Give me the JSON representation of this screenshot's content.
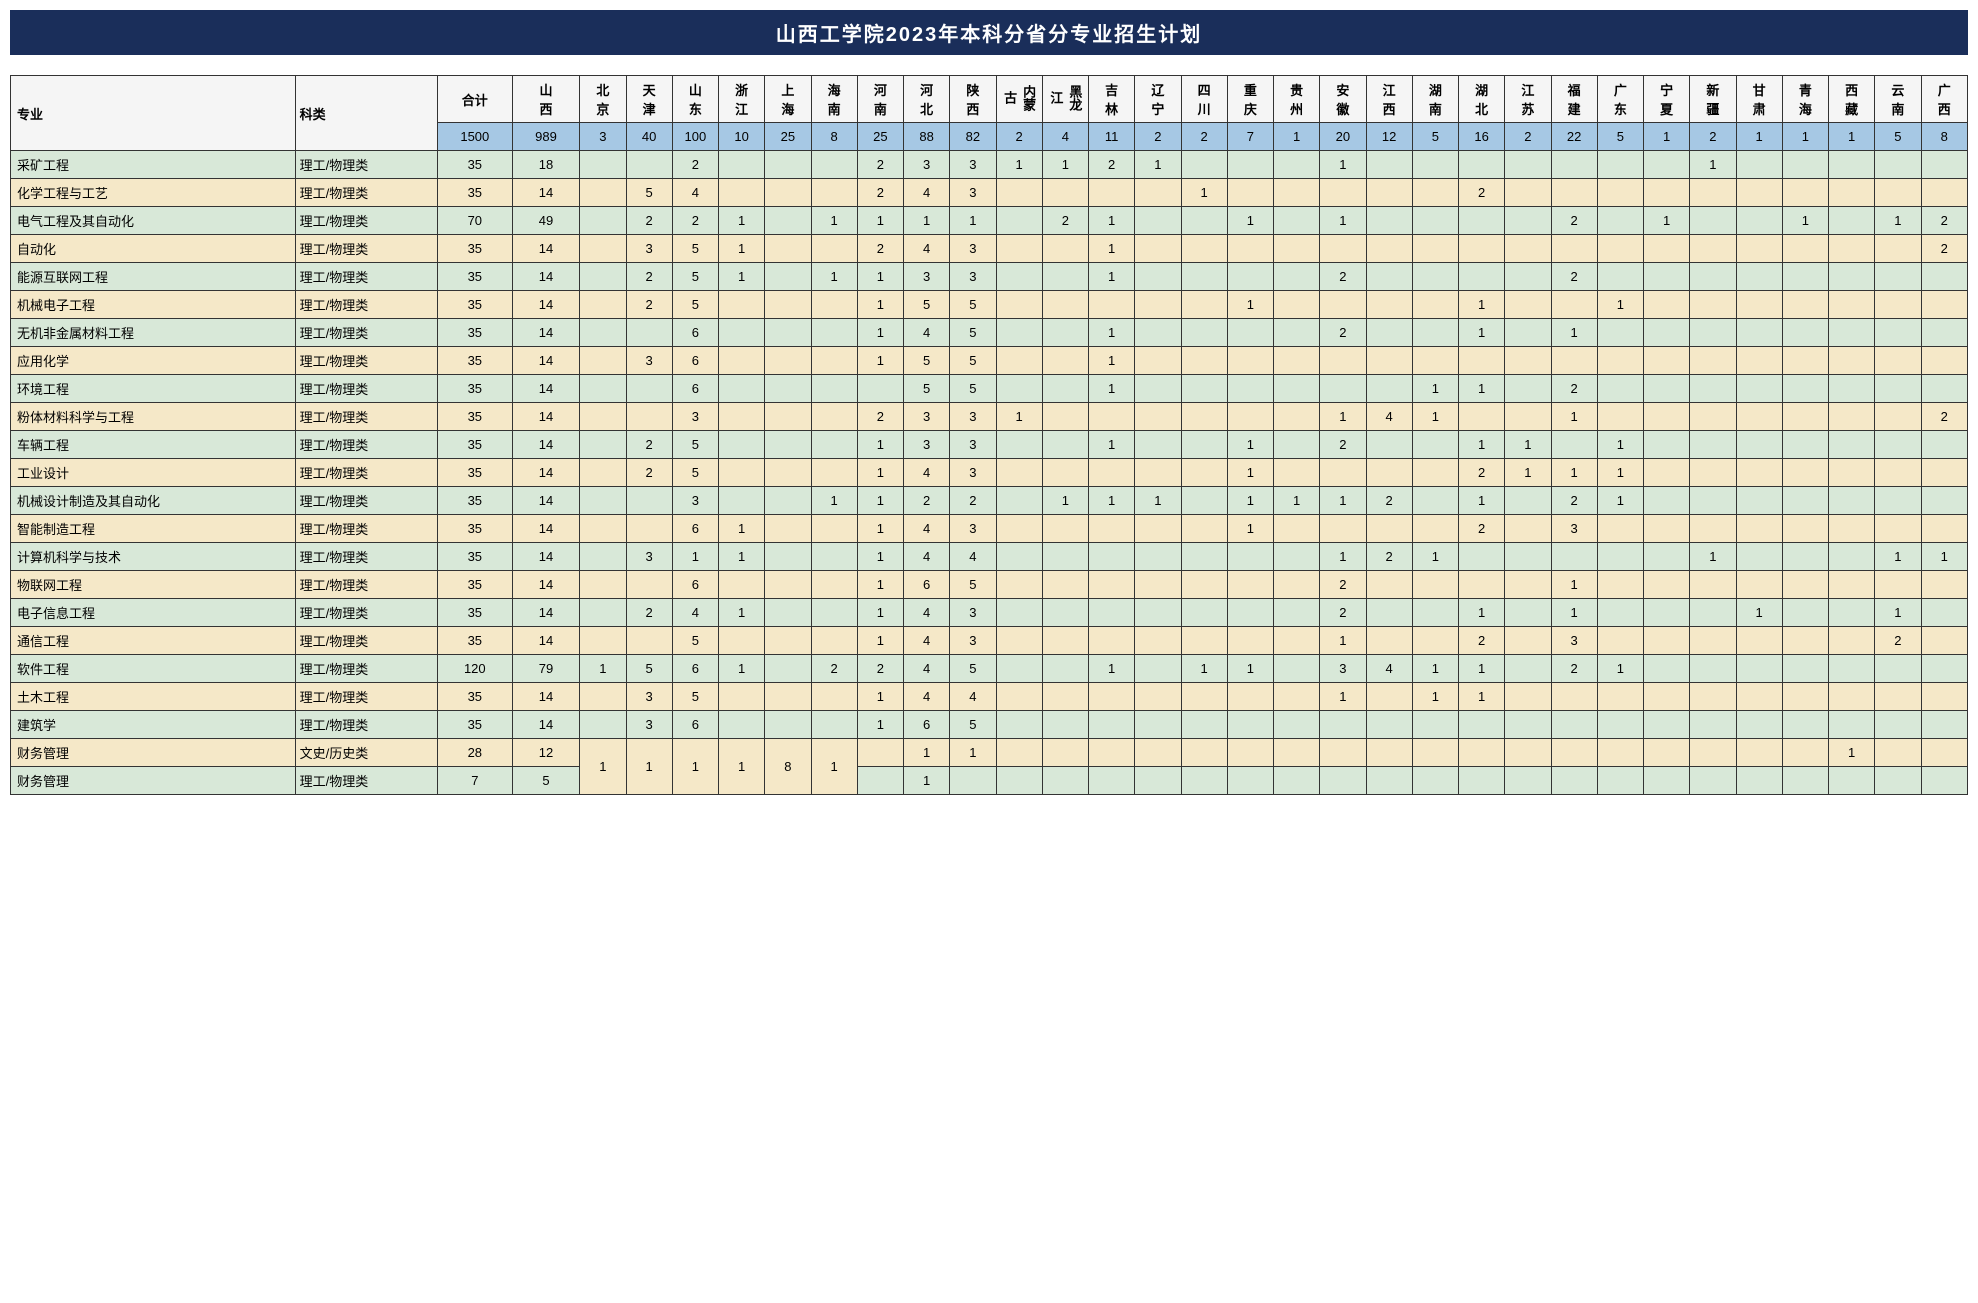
{
  "title": "山西工学院2023年本科分省分专业招生计划",
  "headers": {
    "major": "专业",
    "type": "科类",
    "total": "合计",
    "provinces": [
      "山西",
      "北京",
      "天津",
      "山东",
      "浙江",
      "上海",
      "海南",
      "河南",
      "河北",
      "陕西",
      "内蒙古",
      "黑龙江",
      "吉林",
      "辽宁",
      "四川",
      "重庆",
      "贵州",
      "安徽",
      "江西",
      "湖南",
      "湖北",
      "江苏",
      "福建",
      "广东",
      "宁夏",
      "新疆",
      "甘肃",
      "青海",
      "西藏",
      "云南",
      "广西"
    ]
  },
  "totals": [
    "1500",
    "989",
    "3",
    "40",
    "100",
    "10",
    "25",
    "8",
    "25",
    "88",
    "82",
    "2",
    "4",
    "11",
    "2",
    "2",
    "7",
    "1",
    "20",
    "12",
    "5",
    "16",
    "2",
    "22",
    "5",
    "1",
    "2",
    "1",
    "1",
    "1",
    "5",
    "8"
  ],
  "rows": [
    {
      "major": "采矿工程",
      "type": "理工/物理类",
      "total": "35",
      "cells": [
        "18",
        "",
        "",
        "2",
        "",
        "",
        "",
        "2",
        "3",
        "3",
        "1",
        "1",
        "2",
        "1",
        "",
        "",
        "",
        "1",
        "",
        "",
        "",
        "",
        "",
        "",
        "",
        "1",
        "",
        "",
        "",
        "",
        ""
      ]
    },
    {
      "major": "化学工程与工艺",
      "type": "理工/物理类",
      "total": "35",
      "cells": [
        "14",
        "",
        "5",
        "4",
        "",
        "",
        "",
        "2",
        "4",
        "3",
        "",
        "",
        "",
        "",
        "1",
        "",
        "",
        "",
        "",
        "",
        "2",
        "",
        "",
        "",
        "",
        "",
        "",
        "",
        "",
        "",
        ""
      ]
    },
    {
      "major": "电气工程及其自动化",
      "type": "理工/物理类",
      "total": "70",
      "cells": [
        "49",
        "",
        "2",
        "2",
        "1",
        "",
        "1",
        "1",
        "1",
        "1",
        "",
        "2",
        "1",
        "",
        "",
        "1",
        "",
        "1",
        "",
        "",
        "",
        "",
        "2",
        "",
        "1",
        "",
        "",
        "1",
        "",
        "1",
        "2"
      ]
    },
    {
      "major": "自动化",
      "type": "理工/物理类",
      "total": "35",
      "cells": [
        "14",
        "",
        "3",
        "5",
        "1",
        "",
        "",
        "2",
        "4",
        "3",
        "",
        "",
        "1",
        "",
        "",
        "",
        "",
        "",
        "",
        "",
        "",
        "",
        "",
        "",
        "",
        "",
        "",
        "",
        "",
        "",
        "2"
      ]
    },
    {
      "major": "能源互联网工程",
      "type": "理工/物理类",
      "total": "35",
      "cells": [
        "14",
        "",
        "2",
        "5",
        "1",
        "",
        "1",
        "1",
        "3",
        "3",
        "",
        "",
        "1",
        "",
        "",
        "",
        "",
        "2",
        "",
        "",
        "",
        "",
        "2",
        "",
        "",
        "",
        "",
        "",
        "",
        "",
        ""
      ]
    },
    {
      "major": "机械电子工程",
      "type": "理工/物理类",
      "total": "35",
      "cells": [
        "14",
        "",
        "2",
        "5",
        "",
        "",
        "",
        "1",
        "5",
        "5",
        "",
        "",
        "",
        "",
        "",
        "1",
        "",
        "",
        "",
        "",
        "1",
        "",
        "",
        "1",
        "",
        "",
        "",
        "",
        "",
        "",
        ""
      ]
    },
    {
      "major": "无机非金属材料工程",
      "type": "理工/物理类",
      "total": "35",
      "cells": [
        "14",
        "",
        "",
        "6",
        "",
        "",
        "",
        "1",
        "4",
        "5",
        "",
        "",
        "1",
        "",
        "",
        "",
        "",
        "2",
        "",
        "",
        "1",
        "",
        "1",
        "",
        "",
        "",
        "",
        "",
        "",
        "",
        ""
      ]
    },
    {
      "major": "应用化学",
      "type": "理工/物理类",
      "total": "35",
      "cells": [
        "14",
        "",
        "3",
        "6",
        "",
        "",
        "",
        "1",
        "5",
        "5",
        "",
        "",
        "1",
        "",
        "",
        "",
        "",
        "",
        "",
        "",
        "",
        "",
        "",
        "",
        "",
        "",
        "",
        "",
        "",
        "",
        ""
      ]
    },
    {
      "major": "环境工程",
      "type": "理工/物理类",
      "total": "35",
      "cells": [
        "14",
        "",
        "",
        "6",
        "",
        "",
        "",
        "",
        "5",
        "5",
        "",
        "",
        "1",
        "",
        "",
        "",
        "",
        "",
        "",
        "1",
        "1",
        "",
        "2",
        "",
        "",
        "",
        "",
        "",
        "",
        "",
        ""
      ]
    },
    {
      "major": "粉体材料科学与工程",
      "type": "理工/物理类",
      "total": "35",
      "cells": [
        "14",
        "",
        "",
        "3",
        "",
        "",
        "",
        "2",
        "3",
        "3",
        "1",
        "",
        "",
        "",
        "",
        "",
        "",
        "1",
        "4",
        "1",
        "",
        "",
        "1",
        "",
        "",
        "",
        "",
        "",
        "",
        "",
        "2"
      ]
    },
    {
      "major": "车辆工程",
      "type": "理工/物理类",
      "total": "35",
      "cells": [
        "14",
        "",
        "2",
        "5",
        "",
        "",
        "",
        "1",
        "3",
        "3",
        "",
        "",
        "1",
        "",
        "",
        "1",
        "",
        "2",
        "",
        "",
        "1",
        "1",
        "",
        "1",
        "",
        "",
        "",
        "",
        "",
        "",
        ""
      ]
    },
    {
      "major": "工业设计",
      "type": "理工/物理类",
      "total": "35",
      "cells": [
        "14",
        "",
        "2",
        "5",
        "",
        "",
        "",
        "1",
        "4",
        "3",
        "",
        "",
        "",
        "",
        "",
        "1",
        "",
        "",
        "",
        "",
        "2",
        "1",
        "1",
        "1",
        "",
        "",
        "",
        "",
        "",
        "",
        ""
      ]
    },
    {
      "major": "机械设计制造及其自动化",
      "type": "理工/物理类",
      "total": "35",
      "cells": [
        "14",
        "",
        "",
        "3",
        "",
        "",
        "1",
        "1",
        "2",
        "2",
        "",
        "1",
        "1",
        "1",
        "",
        "1",
        "1",
        "1",
        "2",
        "",
        "1",
        "",
        "2",
        "1",
        "",
        "",
        "",
        "",
        "",
        "",
        ""
      ]
    },
    {
      "major": "智能制造工程",
      "type": "理工/物理类",
      "total": "35",
      "cells": [
        "14",
        "",
        "",
        "6",
        "1",
        "",
        "",
        "1",
        "4",
        "3",
        "",
        "",
        "",
        "",
        "",
        "1",
        "",
        "",
        "",
        "",
        "2",
        "",
        "3",
        "",
        "",
        "",
        "",
        "",
        "",
        "",
        ""
      ]
    },
    {
      "major": "计算机科学与技术",
      "type": "理工/物理类",
      "total": "35",
      "cells": [
        "14",
        "",
        "3",
        "1",
        "1",
        "",
        "",
        "1",
        "4",
        "4",
        "",
        "",
        "",
        "",
        "",
        "",
        "",
        "1",
        "2",
        "1",
        "",
        "",
        "",
        "",
        "",
        "1",
        "",
        "",
        "",
        "1",
        "1"
      ]
    },
    {
      "major": "物联网工程",
      "type": "理工/物理类",
      "total": "35",
      "cells": [
        "14",
        "",
        "",
        "6",
        "",
        "",
        "",
        "1",
        "6",
        "5",
        "",
        "",
        "",
        "",
        "",
        "",
        "",
        "2",
        "",
        "",
        "",
        "",
        "1",
        "",
        "",
        "",
        "",
        "",
        "",
        "",
        ""
      ]
    },
    {
      "major": "电子信息工程",
      "type": "理工/物理类",
      "total": "35",
      "cells": [
        "14",
        "",
        "2",
        "4",
        "1",
        "",
        "",
        "1",
        "4",
        "3",
        "",
        "",
        "",
        "",
        "",
        "",
        "",
        "2",
        "",
        "",
        "1",
        "",
        "1",
        "",
        "",
        "",
        "1",
        "",
        "",
        "1",
        ""
      ]
    },
    {
      "major": "通信工程",
      "type": "理工/物理类",
      "total": "35",
      "cells": [
        "14",
        "",
        "",
        "5",
        "",
        "",
        "",
        "1",
        "4",
        "3",
        "",
        "",
        "",
        "",
        "",
        "",
        "",
        "1",
        "",
        "",
        "2",
        "",
        "3",
        "",
        "",
        "",
        "",
        "",
        "",
        "2",
        ""
      ]
    },
    {
      "major": "软件工程",
      "type": "理工/物理类",
      "total": "120",
      "cells": [
        "79",
        "1",
        "5",
        "6",
        "1",
        "",
        "2",
        "2",
        "4",
        "5",
        "",
        "",
        "1",
        "",
        "1",
        "1",
        "",
        "3",
        "4",
        "1",
        "1",
        "",
        "2",
        "1",
        "",
        "",
        "",
        "",
        "",
        "",
        ""
      ]
    },
    {
      "major": "土木工程",
      "type": "理工/物理类",
      "total": "35",
      "cells": [
        "14",
        "",
        "3",
        "5",
        "",
        "",
        "",
        "1",
        "4",
        "4",
        "",
        "",
        "",
        "",
        "",
        "",
        "",
        "1",
        "",
        "1",
        "1",
        "",
        "",
        "",
        "",
        "",
        "",
        "",
        "",
        "",
        ""
      ]
    },
    {
      "major": "建筑学",
      "type": "理工/物理类",
      "total": "35",
      "cells": [
        "14",
        "",
        "3",
        "6",
        "",
        "",
        "",
        "1",
        "6",
        "5",
        "",
        "",
        "",
        "",
        "",
        "",
        "",
        "",
        "",
        "",
        "",
        "",
        "",
        "",
        "",
        "",
        "",
        "",
        "",
        "",
        ""
      ]
    },
    {
      "major": "财务管理",
      "type": "文史/历史类",
      "total": "28",
      "cells": [
        "12",
        "",
        "",
        "",
        "",
        "",
        "",
        "",
        "1",
        "1",
        "",
        "",
        "",
        "",
        "",
        "",
        "",
        "",
        "",
        "",
        "",
        "",
        "",
        "",
        "",
        "",
        "",
        "",
        "1",
        "",
        ""
      ],
      "mergeNext": [
        "1",
        "1",
        "1",
        "1",
        "8",
        "1"
      ]
    },
    {
      "major": "财务管理",
      "type": "理工/物理类",
      "total": "7",
      "cells": [
        "5",
        "",
        "",
        "",
        "",
        "",
        "",
        "",
        "1",
        "",
        "",
        "",
        "",
        "",
        "",
        "",
        "",
        "",
        "",
        "",
        "",
        "",
        "",
        "",
        "",
        "",
        "",
        "",
        "",
        "",
        ""
      ],
      "mergedCols": [
        1,
        2,
        3,
        4,
        5,
        6
      ]
    }
  ],
  "colors": {
    "title_bg": "#1a2e5a",
    "title_fg": "#ffffff",
    "totals_bg": "#a6c8e4",
    "row_green": "#d8e8d8",
    "row_cream": "#f5e8c8",
    "border": "#333333"
  }
}
